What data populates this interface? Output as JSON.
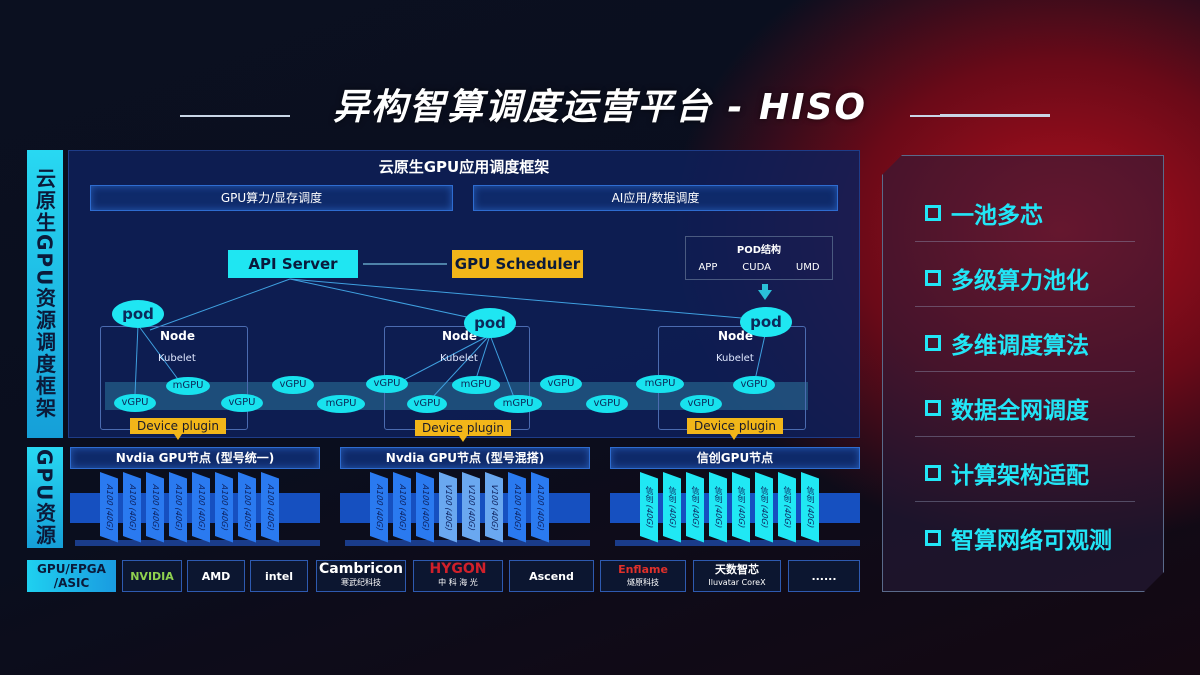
{
  "title": "异构智算调度运营平台 - HISO",
  "left_labels": {
    "framework": "云原生GPU资源调度框架",
    "resources": "GPU资源",
    "hardware": "GPU/FPGA /ASIC"
  },
  "framework": {
    "header": "云原生GPU应用调度框架",
    "bars": [
      "GPU算力/显存调度",
      "AI应用/数据调度"
    ],
    "api_server": "API Server",
    "gpu_scheduler": "GPU Scheduler",
    "pod_structure": {
      "title": "POD结构",
      "items": [
        "APP",
        "CUDA",
        "UMD"
      ]
    },
    "pod": "pod",
    "node": "Node",
    "kubelet": "Kubelet",
    "device_plugin": "Device plugin",
    "ovals": [
      "vGPU",
      "mGPU",
      "vGPU",
      "vGPU",
      "mGPU",
      "vGPU",
      "mGPU",
      "vGPU",
      "mGPU",
      "vGPU",
      "vGPU",
      "mGPU",
      "vGPU",
      "vGPU"
    ]
  },
  "gpu_nodes": [
    {
      "title": "Nvdia GPU节点 (型号统一)",
      "cards": [
        "A100 (40G)",
        "A100 (40G)",
        "A100 (40G)",
        "A100 (40G)",
        "A100 (40G)",
        "A100 (40G)",
        "A100 (40G)",
        "A100 (40G)"
      ]
    },
    {
      "title": "Nvdia GPU节点 (型号混搭)",
      "cards": [
        "A100 (40G)",
        "A100 (40G)",
        "A100 (40G)",
        "V100 (40G)",
        "V100 (40G)",
        "V100 (40G)",
        "A100 (40G)",
        "A100 (40G)"
      ]
    },
    {
      "title": "信创GPU节点",
      "cards": [
        "信创 (40G)",
        "信创 (40G)",
        "信创 (40G)",
        "信创 (40G)",
        "信创 (40G)",
        "信创 (40G)",
        "信创 (40G)",
        "信创 (40G)"
      ]
    }
  ],
  "vendors": [
    {
      "name": "NVIDIA"
    },
    {
      "name": "AMD"
    },
    {
      "name": "intel"
    },
    {
      "name": "Cambricon",
      "sub": "寒武纪科技"
    },
    {
      "name": "HYGON",
      "sub": "中 科 海 光"
    },
    {
      "name": "Ascend"
    },
    {
      "name": "Enflame",
      "sub": "燧原科技"
    },
    {
      "name": "天数智芯",
      "sub": "Iluvatar CoreX"
    },
    {
      "name": "......"
    }
  ],
  "features": [
    "一池多芯",
    "多级算力池化",
    "多维调度算法",
    "数据全网调度",
    "计算架构适配",
    "智算网络可观测"
  ],
  "colors": {
    "cyan": "#1fe6f2",
    "gold": "#f2b619",
    "navy": "#0e205a",
    "red": "#b0101e"
  }
}
